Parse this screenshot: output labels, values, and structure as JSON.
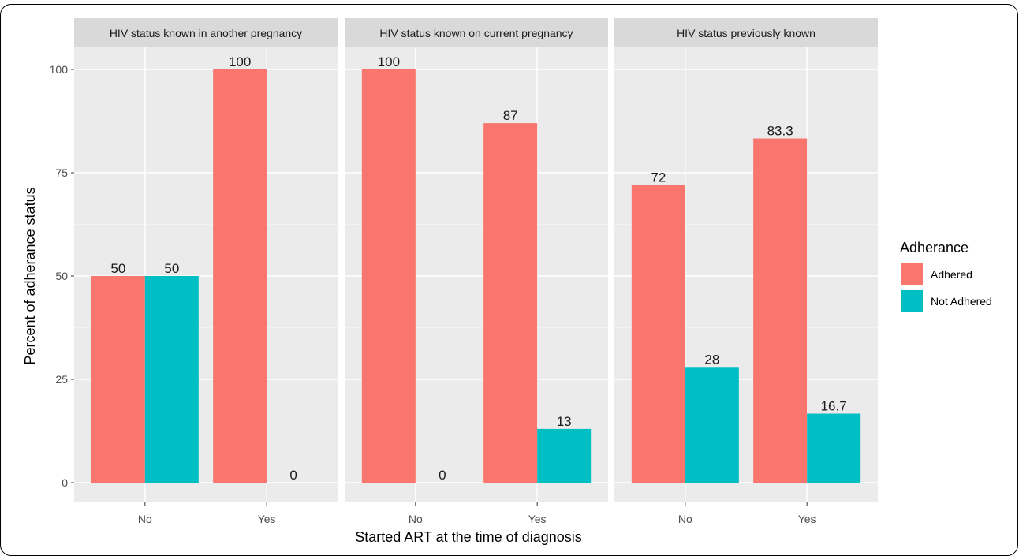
{
  "chart_data": {
    "type": "bar",
    "facets": [
      {
        "title": "HIV status known in another pregnancy",
        "categories": [
          "No",
          "Yes"
        ],
        "series": [
          {
            "name": "Adhered",
            "values": [
              50,
              100
            ],
            "labels": [
              "50",
              "100"
            ]
          },
          {
            "name": "Not Adhered",
            "values": [
              50,
              0
            ],
            "labels": [
              "50",
              "0"
            ]
          }
        ]
      },
      {
        "title": "HIV status known on current pregnancy",
        "categories": [
          "No",
          "Yes"
        ],
        "series": [
          {
            "name": "Adhered",
            "values": [
              100,
              87
            ],
            "labels": [
              "100",
              "87"
            ]
          },
          {
            "name": "Not Adhered",
            "values": [
              0,
              13
            ],
            "labels": [
              "0",
              "13"
            ]
          }
        ]
      },
      {
        "title": "HIV status previously known",
        "categories": [
          "No",
          "Yes"
        ],
        "series": [
          {
            "name": "Adhered",
            "values": [
              72,
              83.3
            ],
            "labels": [
              "72",
              "83.3"
            ]
          },
          {
            "name": "Not Adhered",
            "values": [
              28,
              16.7
            ],
            "labels": [
              "28",
              "16.7"
            ]
          }
        ]
      }
    ],
    "xlabel": "Started ART at the time of diagnosis",
    "ylabel": "Percent of adherance status",
    "ylim": [
      0,
      100
    ],
    "yticks": [
      0,
      25,
      50,
      75,
      100
    ],
    "grid": true,
    "legend": {
      "title": "Adherance",
      "placement": "right",
      "items": [
        {
          "name": "Adhered",
          "color": "#F8766D"
        },
        {
          "name": "Not Adhered",
          "color": "#00BFC4"
        }
      ]
    },
    "colors": {
      "Adhered": "#F8766D",
      "Not Adhered": "#00BFC4"
    }
  }
}
